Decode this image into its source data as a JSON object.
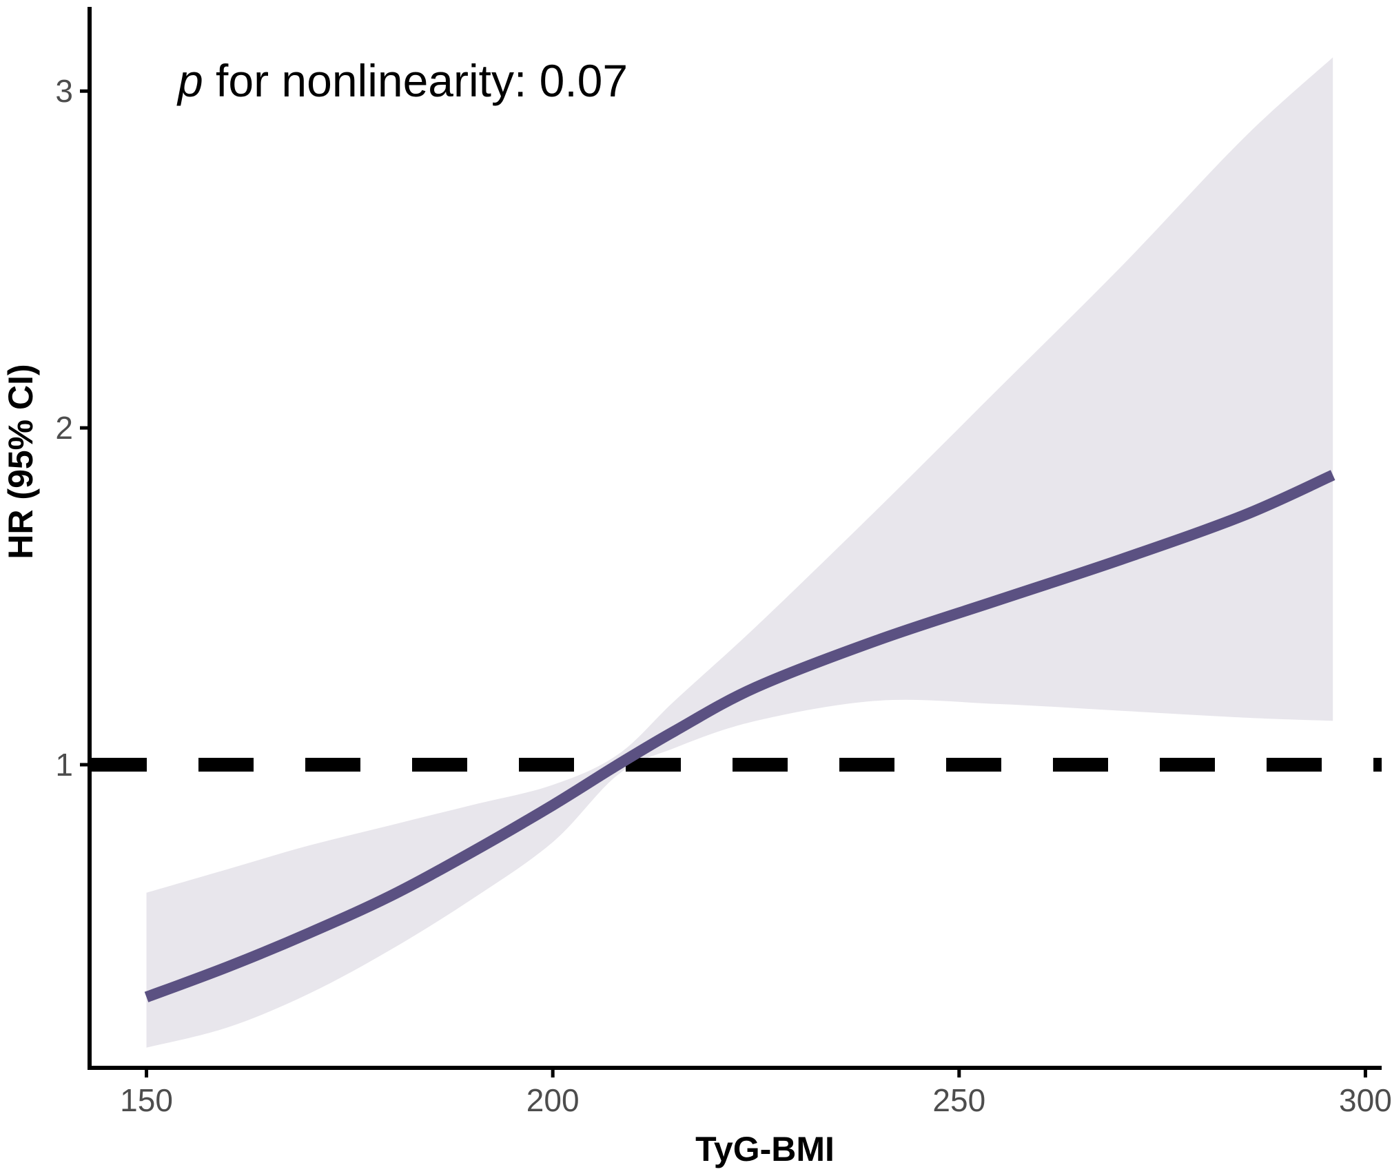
{
  "chart_data": {
    "type": "line",
    "title": "",
    "xlabel": "TyG-BMI",
    "ylabel": "HR (95% CI)",
    "xlim": [
      143,
      302
    ],
    "ylim": [
      0.1,
      3.25
    ],
    "x_ticks": [
      150,
      200,
      250,
      300
    ],
    "y_ticks": [
      1,
      2,
      3
    ],
    "grid": false,
    "legend": "none",
    "reference_line": {
      "y": 1,
      "style": "dashed",
      "color": "#000000"
    },
    "annotation": {
      "italic": "p",
      "text": " for nonlinearity: 0.07"
    },
    "colors": {
      "line": "#5b5182",
      "ci_band": "#e8e6ec",
      "axis": "#000000"
    },
    "series": [
      {
        "x": [
          150,
          160,
          170,
          180,
          190,
          200,
          208,
          215,
          225,
          240,
          255,
          270,
          285,
          296
        ],
        "hr": [
          0.31,
          0.4,
          0.5,
          0.61,
          0.74,
          0.88,
          1.0,
          1.1,
          1.23,
          1.37,
          1.49,
          1.61,
          1.74,
          1.86
        ],
        "lower": [
          0.16,
          0.22,
          0.32,
          0.45,
          0.6,
          0.77,
          0.97,
          1.05,
          1.13,
          1.19,
          1.18,
          1.16,
          1.14,
          1.13
        ],
        "upper": [
          0.62,
          0.69,
          0.76,
          0.82,
          0.88,
          0.94,
          1.03,
          1.19,
          1.41,
          1.76,
          2.12,
          2.48,
          2.86,
          3.1
        ]
      }
    ]
  }
}
